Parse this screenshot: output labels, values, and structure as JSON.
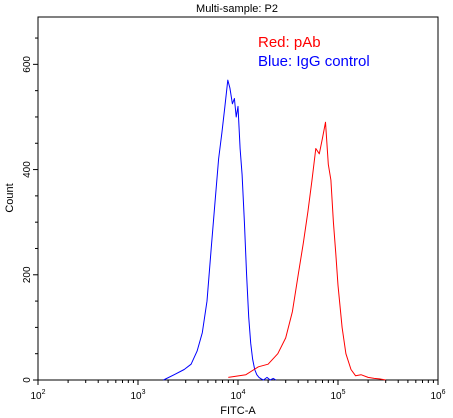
{
  "chart_data": {
    "type": "line",
    "title": "Multi-sample: P2",
    "xlabel": "FITC-A",
    "ylabel": "Count",
    "x_scale": "log",
    "xlim": [
      100,
      1000000
    ],
    "ylim": [
      0,
      690
    ],
    "x_ticks": [
      {
        "value": 100,
        "base": "10",
        "exp": "2"
      },
      {
        "value": 1000,
        "base": "10",
        "exp": "3"
      },
      {
        "value": 10000,
        "base": "10",
        "exp": "4"
      },
      {
        "value": 100000,
        "base": "10",
        "exp": "5"
      },
      {
        "value": 1000000,
        "base": "10",
        "exp": "6"
      }
    ],
    "y_ticks": [
      {
        "value": 0,
        "label": "0"
      },
      {
        "value": 200,
        "label": "200"
      },
      {
        "value": 400,
        "label": "400"
      },
      {
        "value": 600,
        "label": "600"
      }
    ],
    "grid": false,
    "annotations": [
      {
        "text": "Red: pAb",
        "color": "#ff0000"
      },
      {
        "text": "Blue: IgG control",
        "color": "#0000ff"
      }
    ],
    "series": [
      {
        "color": "#0000ff",
        "x": [
          1800,
          2300,
          2900,
          3400,
          3900,
          4400,
          4900,
          5400,
          5900,
          6400,
          6900,
          7400,
          7900,
          8300,
          8800,
          9200,
          9600,
          10000,
          10500,
          11000,
          11600,
          12200,
          12800,
          13400,
          14000,
          14700,
          15400,
          16200,
          17100,
          18000,
          19500,
          21000,
          22500,
          24000
        ],
        "y": [
          0,
          10,
          20,
          30,
          55,
          90,
          150,
          250,
          340,
          420,
          470,
          520,
          570,
          555,
          525,
          535,
          500,
          520,
          440,
          390,
          300,
          200,
          120,
          70,
          40,
          20,
          10,
          5,
          2,
          0,
          5,
          0,
          3,
          0
        ]
      },
      {
        "color": "#ff0000",
        "x": [
          8000,
          12000,
          16000,
          20000,
          25000,
          30000,
          35000,
          40000,
          45000,
          50000,
          55000,
          60000,
          65000,
          70000,
          75000,
          80000,
          85000,
          90000,
          95000,
          100000,
          110000,
          120000,
          135000,
          150000,
          170000,
          200000,
          230000,
          260000,
          300000
        ],
        "y": [
          5,
          10,
          25,
          30,
          50,
          80,
          130,
          200,
          260,
          320,
          380,
          440,
          430,
          460,
          490,
          410,
          380,
          300,
          240,
          180,
          100,
          50,
          20,
          8,
          10,
          5,
          3,
          2,
          0
        ]
      }
    ]
  }
}
